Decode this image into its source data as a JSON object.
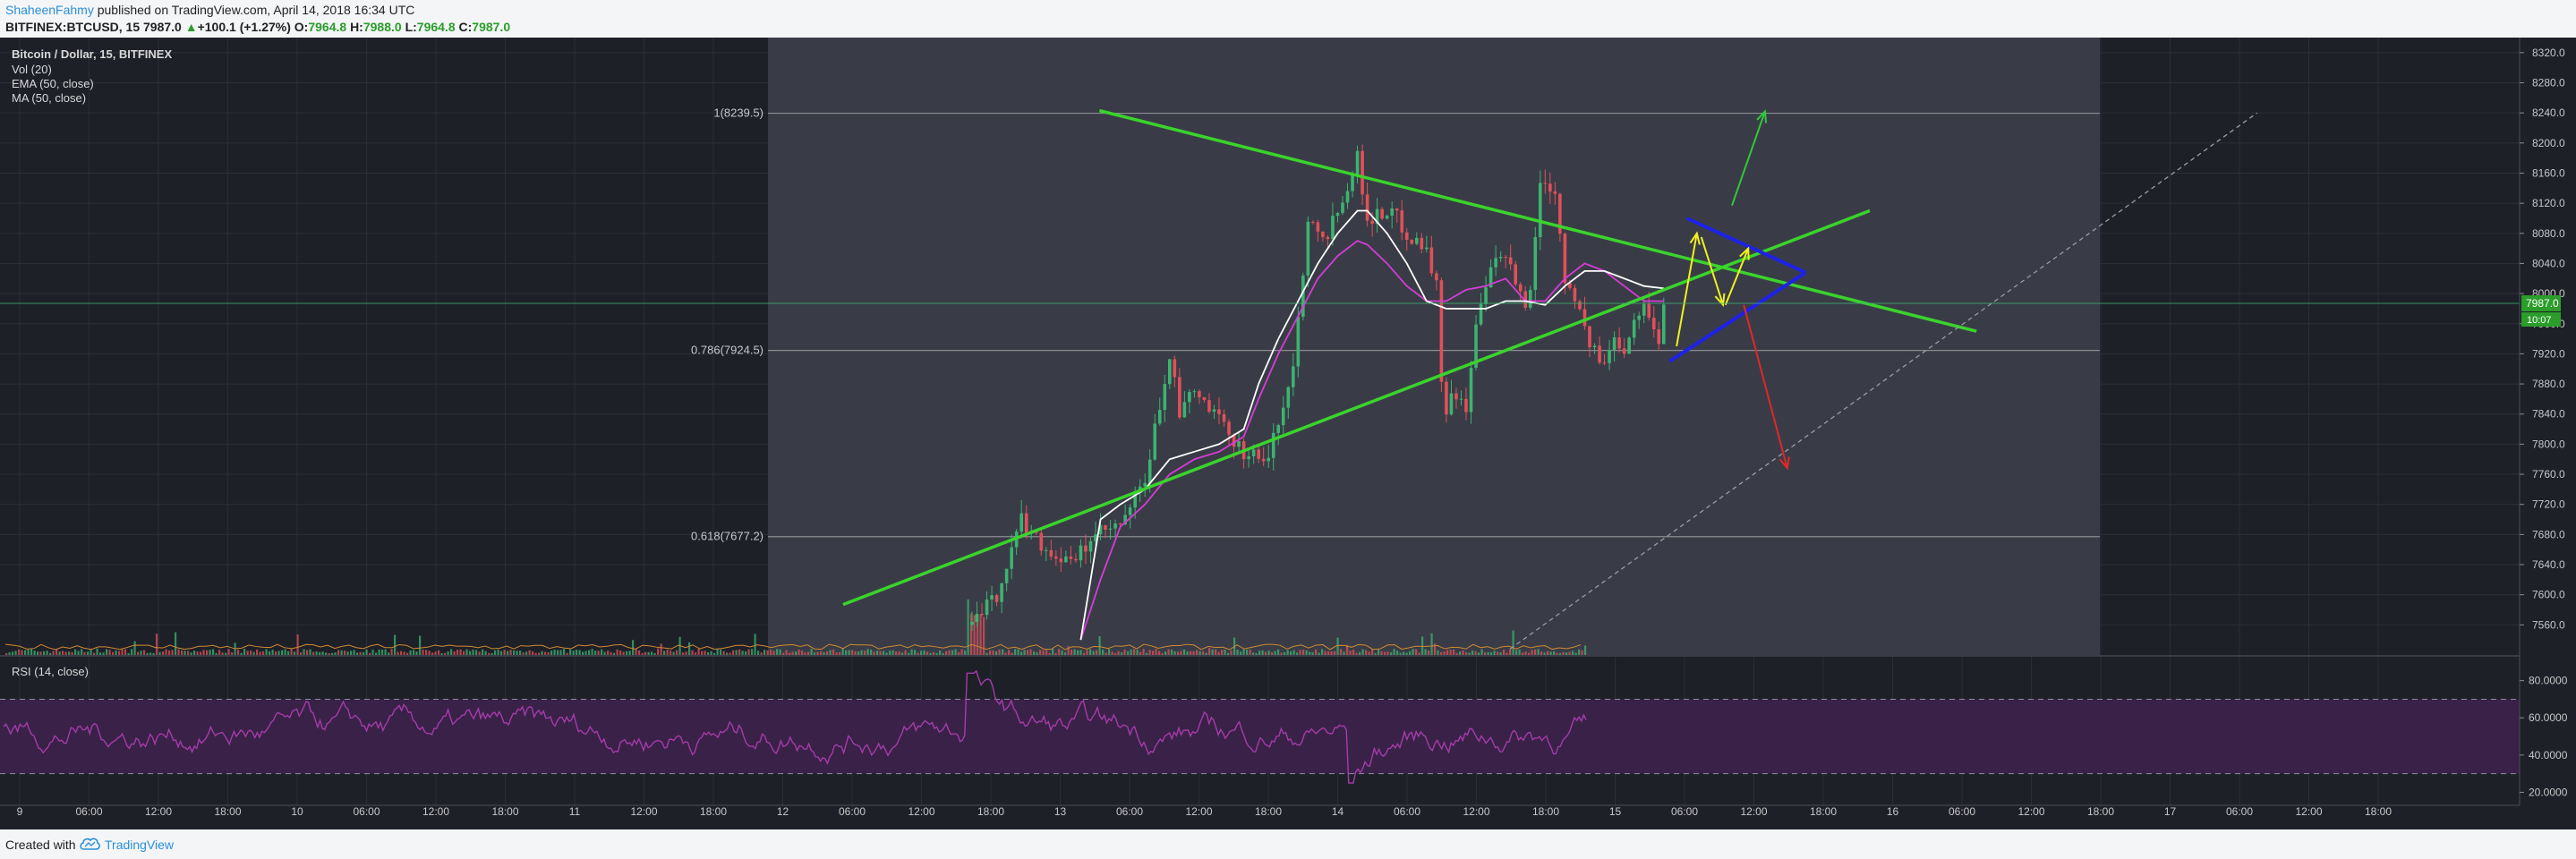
{
  "header": {
    "author": "ShaheenFahmy",
    "published_text": " published on TradingView.com, April 14, 2018 16:34 UTC",
    "symbol": "BITFINEX:BTCUSD, 15",
    "last": "7987.0",
    "change_arrow": "▲",
    "change": "+100.1 (+1.27%)",
    "o_label": "O:",
    "o_value": "7964.8",
    "h_label": "H:",
    "h_value": "7988.0",
    "l_label": "L:",
    "l_value": "7964.8",
    "c_label": "C:",
    "c_value": "7987.0"
  },
  "legend": {
    "title": "Bitcoin / Dollar, 15, BITFINEX",
    "vol": "Vol (20)",
    "ema": "EMA (50, close)",
    "ma": "MA (50, close)",
    "rsi": "RSI (14, close)"
  },
  "footer": {
    "created_with": "Created with",
    "brand": "TradingView",
    "logo_icon": "tradingview-cloud-icon"
  },
  "colors": {
    "background": "#1e2028",
    "zone": "#393c46",
    "grid": "#2b2e38",
    "up_candle": "#3cb371",
    "down_candle": "#e0505a",
    "ema": "#ffffff",
    "ma": "#d63cd6",
    "trend_green": "#3bd32d",
    "trend_blue": "#1e22e8",
    "arrow_yellow": "#f0f020",
    "arrow_green": "#30c93a",
    "arrow_red": "#e02828",
    "rsi_fill": "#3a2148",
    "rsi_line": "#a43ca8"
  },
  "chart_data": {
    "type": "candlestick",
    "symbol": "BITFINEX:BTCUSD",
    "price_axis": {
      "range": [
        7520,
        8340
      ],
      "ticks": [
        "8320.0",
        "8280.0",
        "8240.0",
        "8200.0",
        "8160.0",
        "8120.0",
        "8080.0",
        "8040.0",
        "8000.0",
        "7960.0",
        "7920.0",
        "7880.0",
        "7840.0",
        "7800.0",
        "7760.0",
        "7720.0",
        "7680.0",
        "7640.0",
        "7600.0",
        "7560.0"
      ],
      "current_price_label": "7987.0",
      "current_price": 7987,
      "countdown_label": "10:07"
    },
    "time_axis": {
      "ticks": [
        "9",
        "06:00",
        "12:00",
        "18:00",
        "10",
        "06:00",
        "12:00",
        "18:00",
        "11",
        "12:00",
        "18:00",
        "12",
        "06:00",
        "12:00",
        "18:00",
        "13",
        "06:00",
        "12:00",
        "18:00",
        "14",
        "06:00",
        "12:00",
        "18:00",
        "15",
        "06:00",
        "12:00",
        "18:00",
        "16",
        "06:00",
        "12:00",
        "18:00",
        "17",
        "06:00",
        "12:00",
        "18:00"
      ]
    },
    "fibonacci": [
      {
        "label": "1(8239.5)",
        "price": 8239.5
      },
      {
        "label": "0.786(7924.5)",
        "price": 7924.5
      },
      {
        "label": "0.618(7677.2)",
        "price": 7677.2
      }
    ],
    "price_path": [
      [
        0,
        7560
      ],
      [
        5,
        7600
      ],
      [
        10,
        7700
      ],
      [
        15,
        7660
      ],
      [
        20,
        7640
      ],
      [
        25,
        7680
      ],
      [
        30,
        7690
      ],
      [
        35,
        7750
      ],
      [
        40,
        7920
      ],
      [
        42,
        7840
      ],
      [
        45,
        7870
      ],
      [
        50,
        7830
      ],
      [
        55,
        7790
      ],
      [
        60,
        7780
      ],
      [
        62,
        7830
      ],
      [
        65,
        7900
      ],
      [
        68,
        8100
      ],
      [
        72,
        8080
      ],
      [
        75,
        8130
      ],
      [
        78,
        8180
      ],
      [
        80,
        8100
      ],
      [
        85,
        8110
      ],
      [
        88,
        8080
      ],
      [
        92,
        8060
      ],
      [
        94,
        8010
      ],
      [
        95,
        7880
      ],
      [
        96,
        7850
      ],
      [
        98,
        7870
      ],
      [
        100,
        7850
      ],
      [
        102,
        7950
      ],
      [
        104,
        8010
      ],
      [
        106,
        8040
      ],
      [
        108,
        8050
      ],
      [
        110,
        8010
      ],
      [
        112,
        7990
      ],
      [
        113,
        8000
      ],
      [
        115,
        8150
      ],
      [
        118,
        8140
      ],
      [
        120,
        8020
      ],
      [
        122,
        8000
      ],
      [
        124,
        7950
      ],
      [
        126,
        7920
      ],
      [
        128,
        7905
      ],
      [
        130,
        7940
      ],
      [
        132,
        7930
      ],
      [
        134,
        7970
      ],
      [
        136,
        7980
      ],
      [
        138,
        7960
      ],
      [
        139,
        7930
      ],
      [
        140,
        7987
      ]
    ],
    "ema_50": [
      [
        22,
        7540
      ],
      [
        26,
        7700
      ],
      [
        30,
        7720
      ],
      [
        35,
        7740
      ],
      [
        40,
        7780
      ],
      [
        45,
        7790
      ],
      [
        50,
        7800
      ],
      [
        55,
        7820
      ],
      [
        58,
        7880
      ],
      [
        62,
        7940
      ],
      [
        66,
        7990
      ],
      [
        70,
        8040
      ],
      [
        74,
        8080
      ],
      [
        78,
        8110
      ],
      [
        80,
        8110
      ],
      [
        84,
        8080
      ],
      [
        88,
        8040
      ],
      [
        92,
        7990
      ],
      [
        96,
        7980
      ],
      [
        100,
        7980
      ],
      [
        104,
        7980
      ],
      [
        108,
        7990
      ],
      [
        112,
        7990
      ],
      [
        116,
        7985
      ],
      [
        120,
        8010
      ],
      [
        124,
        8030
      ],
      [
        128,
        8030
      ],
      [
        132,
        8020
      ],
      [
        136,
        8010
      ],
      [
        140,
        8007
      ]
    ],
    "ma_50": [
      [
        22,
        7540
      ],
      [
        26,
        7620
      ],
      [
        30,
        7690
      ],
      [
        35,
        7720
      ],
      [
        40,
        7760
      ],
      [
        45,
        7780
      ],
      [
        50,
        7790
      ],
      [
        55,
        7810
      ],
      [
        58,
        7860
      ],
      [
        62,
        7920
      ],
      [
        66,
        7970
      ],
      [
        70,
        8020
      ],
      [
        74,
        8050
      ],
      [
        78,
        8070
      ],
      [
        80,
        8065
      ],
      [
        84,
        8040
      ],
      [
        88,
        8010
      ],
      [
        92,
        7990
      ],
      [
        96,
        7990
      ],
      [
        100,
        8005
      ],
      [
        104,
        8010
      ],
      [
        108,
        8020
      ],
      [
        112,
        7990
      ],
      [
        116,
        7990
      ],
      [
        120,
        8020
      ],
      [
        124,
        8040
      ],
      [
        128,
        8030
      ],
      [
        132,
        8010
      ],
      [
        136,
        7990
      ],
      [
        140,
        7990
      ]
    ],
    "annotations": [
      {
        "type": "trendline",
        "color": "green",
        "from": [
          25.8,
          8243
        ],
        "to": [
          203.3,
          7950
        ]
      },
      {
        "type": "trendline",
        "color": "green",
        "from": [
          -26.1,
          7587
        ],
        "to": [
          181.7,
          8110
        ]
      },
      {
        "type": "trendline",
        "color": "blue",
        "from": [
          141.2,
          7910
        ],
        "to": [
          168.7,
          8028
        ]
      },
      {
        "type": "trendline",
        "color": "blue",
        "from": [
          144.7,
          8100
        ],
        "to": [
          168.7,
          8028
        ]
      },
      {
        "type": "trendline",
        "color": "white-dashed",
        "from": [
          108.9,
          7528
        ],
        "to": [
          260.1,
          8240
        ]
      },
      {
        "type": "arrow",
        "color": "yellow",
        "from": [
          142.6,
          7930
        ],
        "to": [
          146.7,
          8080
        ]
      },
      {
        "type": "arrow",
        "color": "yellow",
        "from": [
          147.6,
          8075
        ],
        "to": [
          152.0,
          7985
        ]
      },
      {
        "type": "arrow",
        "color": "yellow",
        "from": [
          152.5,
          7985
        ],
        "to": [
          157.1,
          8060
        ]
      },
      {
        "type": "arrow",
        "color": "green",
        "from": [
          153.8,
          8117
        ],
        "to": [
          160.5,
          8242
        ]
      },
      {
        "type": "arrow",
        "color": "red",
        "from": [
          156.2,
          7985
        ],
        "to": [
          165.0,
          7768
        ]
      }
    ],
    "rsi": {
      "label": "RSI (14, close)",
      "ticks": [
        "80.0000",
        "60.0000",
        "40.0000",
        "20.0000"
      ],
      "range": [
        13,
        88
      ],
      "upper_band": 70,
      "lower_band": 30
    }
  }
}
